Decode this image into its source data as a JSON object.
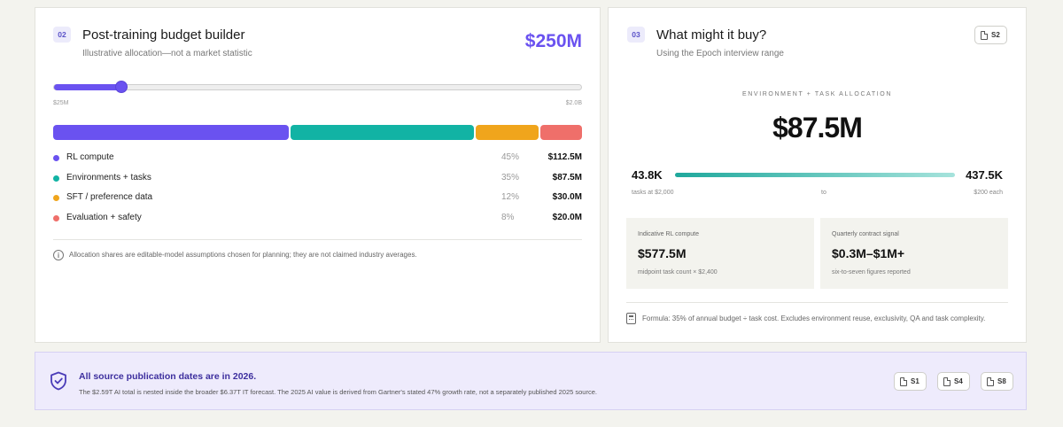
{
  "budget_builder": {
    "step": "02",
    "title": "Post-training budget builder",
    "subtitle": "Illustrative allocation—not a market statistic",
    "budget_total": "$250M",
    "slider": {
      "min_label": "$25M",
      "max_label": "$2.0B",
      "value_fraction": 0.127
    },
    "allocations": [
      {
        "label": "RL compute",
        "percent": "45%",
        "amount": "$112.5M",
        "share": 45,
        "color": "#6a52f0"
      },
      {
        "label": "Environments + tasks",
        "percent": "35%",
        "amount": "$87.5M",
        "share": 35,
        "color": "#12b3a4"
      },
      {
        "label": "SFT / preference data",
        "percent": "12%",
        "amount": "$30.0M",
        "share": 12,
        "color": "#f0a51c"
      },
      {
        "label": "Evaluation + safety",
        "percent": "8%",
        "amount": "$20.0M",
        "share": 8,
        "color": "#ef6f6a"
      }
    ],
    "note": "Allocation shares are editable-model assumptions chosen for planning; they are not claimed industry averages."
  },
  "what_buy": {
    "step": "03",
    "title": "What might it buy?",
    "subtitle": "Using the Epoch interview range",
    "source_chip": "S2",
    "section_label": "ENVIRONMENT + TASK ALLOCATION",
    "allocation_amount": "$87.5M",
    "range": {
      "low": "43.8K",
      "high": "437.5K",
      "low_label": "tasks at $2,000",
      "mid_label": "to",
      "high_label": "$200 each"
    },
    "stats": [
      {
        "label": "Indicative RL compute",
        "value": "$577.5M",
        "foot": "midpoint task count × $2,400"
      },
      {
        "label": "Quarterly contract signal",
        "value": "$0.3M–$1M+",
        "foot": "six-to-seven figures reported"
      }
    ],
    "formula": "Formula: 35% of annual budget ÷ task cost. Excludes environment reuse, exclusivity, QA and task complexity."
  },
  "banner": {
    "title": "All source publication dates are in 2026.",
    "text": "The $2.59T AI total is nested inside the broader $6.37T IT forecast. The 2025 AI value is derived from Gartner's stated 47% growth rate, not a separately published 2025 source.",
    "sources": [
      "S1",
      "S4",
      "S8"
    ]
  },
  "colors": {
    "accent": "#6a52f0",
    "teal": "#12b3a4",
    "banner_title": "#3d2f9e"
  }
}
